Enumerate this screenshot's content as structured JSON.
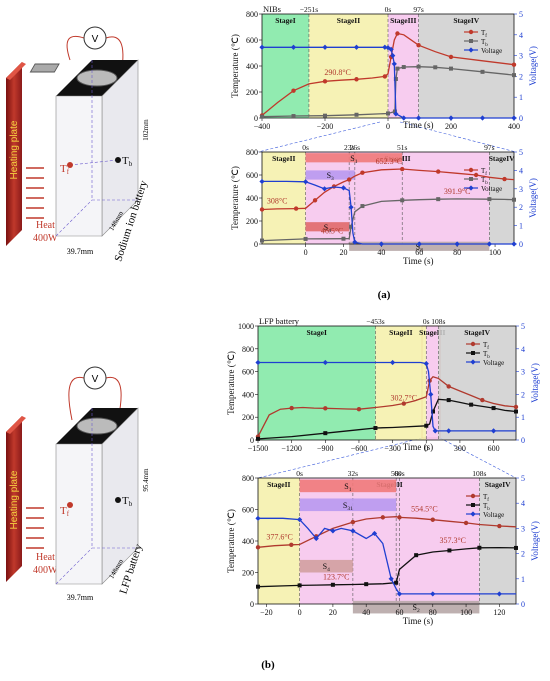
{
  "panel_labels": [
    "(a)",
    "(b)"
  ],
  "battery_a": {
    "plate_label": "Heating plate",
    "heat_label": "Heat",
    "power_label": "400W",
    "tf_label": "T",
    "tf_sub": "f",
    "tb_label": "T",
    "tb_sub": "b",
    "voltmeter": "V",
    "height_label": "102mm",
    "depth_label": "148mm",
    "width_label": "39.7mm",
    "battery_name": "Sodium ion battery"
  },
  "battery_b": {
    "plate_label": "Heating plate",
    "heat_label": "Heat",
    "power_label": "400W",
    "tf_label": "T",
    "tf_sub": "f",
    "tb_label": "T",
    "tb_sub": "b",
    "voltmeter": "V",
    "height_label": "95.4mm",
    "depth_label": "148mm",
    "width_label": "39.7mm",
    "battery_name": "LFP battery"
  },
  "chart_data": [
    {
      "id": "a_top",
      "type": "line",
      "corner_label": "NIBs",
      "xlabel": "Time (s)",
      "ylabel": "Temperature (℃)",
      "y2label": "Voltage(V)",
      "xlim": [
        -400,
        400
      ],
      "ylim": [
        0,
        800
      ],
      "y2lim": [
        0,
        5
      ],
      "xticks": [
        -400,
        -200,
        0,
        200,
        400
      ],
      "xtick_labels": [
        "−400",
        "−200",
        "0",
        "200",
        "400"
      ],
      "yticks": [
        0,
        200,
        400,
        600,
        800
      ],
      "y2ticks": [
        0,
        1,
        2,
        3,
        4,
        5
      ],
      "regions": [
        {
          "label": "StageI",
          "from": -400,
          "to": -251,
          "color": "#7ee8a2"
        },
        {
          "label": "StageII",
          "from": -251,
          "to": 0,
          "color": "#f4f0a8"
        },
        {
          "label": "StageIII",
          "from": 0,
          "to": 97,
          "color": "#f6c3ec"
        },
        {
          "label": "StageIV",
          "from": 97,
          "to": 400,
          "color": "#cfcfcf"
        }
      ],
      "marker_lines": [
        {
          "x": -251,
          "label": "−251s"
        },
        {
          "x": 0,
          "label": "0s"
        },
        {
          "x": 97,
          "label": "97s"
        }
      ],
      "annotations": [
        {
          "text": "290.8°C",
          "x": -160,
          "y": 291
        }
      ],
      "legend": {
        "position": "top-right"
      },
      "series": [
        {
          "name": "T",
          "sub": "f",
          "color": "#c0392b",
          "axis": "left",
          "marker": "circle",
          "x": [
            -400,
            -350,
            -300,
            -251,
            -200,
            -150,
            -100,
            -50,
            -10,
            0,
            10,
            20,
            30,
            50,
            97,
            150,
            200,
            300,
            400
          ],
          "y": [
            20,
            120,
            210,
            262,
            282,
            291,
            298,
            308,
            320,
            340,
            470,
            600,
            650,
            640,
            560,
            510,
            470,
            440,
            410
          ]
        },
        {
          "name": "T",
          "sub": "b",
          "color": "#666666",
          "axis": "left",
          "marker": "square",
          "x": [
            -400,
            -300,
            -200,
            -100,
            0,
            22,
            25,
            30,
            50,
            97,
            150,
            200,
            300,
            400
          ],
          "y": [
            10,
            15,
            18,
            25,
            35,
            50,
            300,
            380,
            392,
            395,
            390,
            380,
            355,
            330
          ]
        },
        {
          "name": "Voltage",
          "color": "#1f3fd1",
          "axis": "right",
          "marker": "diamond",
          "x": [
            -400,
            -300,
            -200,
            -100,
            -10,
            0,
            10,
            15,
            20,
            25,
            50,
            97,
            200,
            300,
            400
          ],
          "y": [
            3.4,
            3.4,
            3.4,
            3.4,
            3.4,
            3.38,
            3.3,
            3.0,
            2.6,
            0.2,
            0.0,
            0.0,
            0.0,
            0.0,
            0.0
          ]
        }
      ]
    },
    {
      "id": "a_bottom",
      "type": "line",
      "xlabel": "Time (s)",
      "ylabel": "Temperature (℃)",
      "y2label": "Voltage(V)",
      "xlim": [
        -23,
        110
      ],
      "ylim": [
        0,
        800
      ],
      "y2lim": [
        0,
        5
      ],
      "xticks": [
        0,
        20,
        40,
        60,
        80,
        100
      ],
      "xtick_labels": [
        "0",
        "20",
        "40",
        "60",
        "80",
        "100"
      ],
      "yticks": [
        0,
        200,
        400,
        600,
        800
      ],
      "y2ticks": [
        0,
        1,
        2,
        3,
        4,
        5
      ],
      "regions": [
        {
          "label": "StageII",
          "from": -23,
          "to": 0,
          "color": "#f4f0a8"
        },
        {
          "label": "StageIII",
          "from": 0,
          "to": 97,
          "color": "#f6c3ec"
        },
        {
          "label": "StageIV",
          "from": 97,
          "to": 110,
          "color": "#cfcfcf"
        }
      ],
      "marker_lines": [
        {
          "x": 0,
          "label": "0s"
        },
        {
          "x": 23,
          "label": "23s"
        },
        {
          "x": 26,
          "label": "26s"
        },
        {
          "x": 51,
          "label": "51s"
        },
        {
          "x": 97,
          "label": "97s"
        }
      ],
      "bands": [
        {
          "label": "S",
          "sub": "1",
          "from": 0,
          "to": 51,
          "ylo": 710,
          "yhi": 790,
          "color": "#f07a7a"
        },
        {
          "label": "S",
          "sub": "3",
          "from": 0,
          "to": 26,
          "ylo": 560,
          "yhi": 640,
          "color": "#b899f0"
        },
        {
          "label": "S",
          "sub": "4",
          "from": 0,
          "to": 23,
          "ylo": 110,
          "yhi": 190,
          "color": "#e06a6a"
        },
        {
          "label": "S",
          "sub": "2",
          "from": 23,
          "to": 97,
          "ylo": -60,
          "yhi": 20,
          "color": "#b7a7a7"
        }
      ],
      "annotations": [
        {
          "text": "308°C",
          "x": -15,
          "y": 308
        },
        {
          "text": "652.3°C",
          "x": 44,
          "y": 652
        },
        {
          "text": "46.5°C",
          "x": 14,
          "y": 46
        },
        {
          "text": "391.9°C",
          "x": 80,
          "y": 392
        }
      ],
      "legend": {
        "position": "top-right"
      },
      "series": [
        {
          "name": "T",
          "sub": "f",
          "color": "#c0392b",
          "axis": "left",
          "marker": "circle",
          "x": [
            -23,
            -15,
            -5,
            0,
            5,
            10,
            15,
            20,
            23,
            26,
            30,
            40,
            51,
            60,
            70,
            80,
            90,
            97,
            105,
            110
          ],
          "y": [
            300,
            305,
            308,
            310,
            380,
            450,
            500,
            540,
            560,
            590,
            620,
            645,
            652,
            640,
            630,
            615,
            600,
            580,
            565,
            560
          ]
        },
        {
          "name": "T",
          "sub": "b",
          "color": "#666666",
          "axis": "left",
          "marker": "square",
          "x": [
            -23,
            -10,
            0,
            10,
            20,
            23,
            24,
            26,
            30,
            40,
            51,
            60,
            70,
            80,
            97,
            105,
            110
          ],
          "y": [
            30,
            38,
            44,
            45,
            46,
            47,
            150,
            280,
            330,
            370,
            380,
            385,
            390,
            392,
            390,
            388,
            385
          ]
        },
        {
          "name": "Voltage",
          "color": "#1f3fd1",
          "axis": "right",
          "marker": "diamond",
          "x": [
            -23,
            -10,
            0,
            5,
            10,
            15,
            20,
            23,
            24,
            25,
            26,
            30,
            40,
            51,
            60,
            70,
            80,
            90,
            97,
            105,
            110
          ],
          "y": [
            3.4,
            3.4,
            3.38,
            3.2,
            3.0,
            3.1,
            3.05,
            2.9,
            2.0,
            0.6,
            0.1,
            0.0,
            0.0,
            0.0,
            0.0,
            0.0,
            0.0,
            0.0,
            0.0,
            0.0,
            0.0
          ]
        }
      ]
    },
    {
      "id": "b_top",
      "type": "line",
      "corner_label": "LFP battery",
      "xlabel": "Time (s)",
      "ylabel": "Temperature (℃)",
      "y2label": "Voltage(V)",
      "xlim": [
        -1500,
        800
      ],
      "ylim": [
        0,
        1000
      ],
      "y2lim": [
        0,
        5
      ],
      "xticks": [
        -1500,
        -1200,
        -900,
        -600,
        -300,
        0,
        300,
        600
      ],
      "xtick_labels": [
        "−1500",
        "−1200",
        "−900",
        "−600",
        "−300",
        "0",
        "300",
        "600"
      ],
      "yticks": [
        0,
        200,
        400,
        600,
        800,
        1000
      ],
      "y2ticks": [
        0,
        1,
        2,
        3,
        4,
        5
      ],
      "regions": [
        {
          "label": "StageI",
          "from": -1500,
          "to": -453,
          "color": "#7ee8a2"
        },
        {
          "label": "StageII",
          "from": -453,
          "to": 0,
          "color": "#f4f0a8"
        },
        {
          "label": "StageIII",
          "from": 0,
          "to": 108,
          "color": "#f6c3ec"
        },
        {
          "label": "StageIV",
          "from": 108,
          "to": 800,
          "color": "#cfcfcf"
        }
      ],
      "marker_lines": [
        {
          "x": -453,
          "label": "−453s"
        },
        {
          "x": 0,
          "label": "0s"
        },
        {
          "x": 108,
          "label": "108s"
        }
      ],
      "annotations": [
        {
          "text": "302.7°C",
          "x": -200,
          "y": 303
        }
      ],
      "legend": {
        "position": "top-right"
      },
      "series": [
        {
          "name": "T",
          "sub": "f",
          "color": "#b03a2e",
          "axis": "left",
          "marker": "circle",
          "x": [
            -1500,
            -1400,
            -1300,
            -1200,
            -1100,
            -1000,
            -900,
            -800,
            -700,
            -600,
            -453,
            -300,
            -200,
            -100,
            0,
            30,
            60,
            108,
            200,
            300,
            400,
            500,
            600,
            700,
            800
          ],
          "y": [
            30,
            220,
            270,
            280,
            285,
            280,
            278,
            275,
            272,
            270,
            285,
            303,
            320,
            345,
            380,
            520,
            555,
            540,
            470,
            430,
            390,
            350,
            320,
            300,
            290
          ]
        },
        {
          "name": "T",
          "sub": "b",
          "color": "#111111",
          "axis": "left",
          "marker": "square",
          "x": [
            -1500,
            -1200,
            -900,
            -600,
            -453,
            -300,
            0,
            30,
            60,
            108,
            200,
            300,
            400,
            500,
            600,
            700,
            800
          ],
          "y": [
            10,
            30,
            60,
            90,
            105,
            110,
            125,
            140,
            250,
            357,
            350,
            330,
            310,
            295,
            280,
            260,
            250
          ]
        },
        {
          "name": "Voltage",
          "color": "#1f3fd1",
          "axis": "right",
          "marker": "diamond",
          "x": [
            -1500,
            -1200,
            -900,
            -600,
            -300,
            -50,
            0,
            20,
            40,
            60,
            80,
            108,
            200,
            400,
            600,
            800
          ],
          "y": [
            3.4,
            3.4,
            3.4,
            3.4,
            3.4,
            3.4,
            3.35,
            3.0,
            2.0,
            0.6,
            0.4,
            0.4,
            0.4,
            0.4,
            0.4,
            0.4
          ]
        }
      ]
    },
    {
      "id": "b_bottom",
      "type": "line",
      "xlabel": "Time (s)",
      "ylabel": "Temperature (℃)",
      "y2label": "Voltage(V)",
      "xlim": [
        -25,
        130
      ],
      "ylim": [
        0,
        800
      ],
      "y2lim": [
        0,
        5
      ],
      "xticks": [
        -20,
        0,
        20,
        40,
        60,
        80,
        100,
        120
      ],
      "xtick_labels": [
        "−20",
        "0",
        "20",
        "40",
        "60",
        "80",
        "100",
        "120"
      ],
      "yticks": [
        0,
        200,
        400,
        600,
        800
      ],
      "y2ticks": [
        0,
        1,
        2,
        3,
        4,
        5
      ],
      "regions": [
        {
          "label": "StageII",
          "from": -25,
          "to": 0,
          "color": "#f4f0a8"
        },
        {
          "label": "StageIII",
          "from": 0,
          "to": 108,
          "color": "#f6c3ec"
        },
        {
          "label": "StageIV",
          "from": 108,
          "to": 130,
          "color": "#cfcfcf"
        }
      ],
      "marker_lines": [
        {
          "x": 0,
          "label": "0s"
        },
        {
          "x": 32,
          "label": "32s"
        },
        {
          "x": 58,
          "label": "58s"
        },
        {
          "x": 60,
          "label": "60s"
        },
        {
          "x": 108,
          "label": "108s"
        }
      ],
      "bands": [
        {
          "label": "S",
          "sub": "1",
          "from": 0,
          "to": 58,
          "ylo": 710,
          "yhi": 790,
          "color": "#f07a7a"
        },
        {
          "label": "S",
          "sub": "31",
          "from": 0,
          "to": 58,
          "ylo": 590,
          "yhi": 670,
          "color": "#b899f0"
        },
        {
          "label": "S",
          "sub": "4",
          "from": 0,
          "to": 32,
          "ylo": 200,
          "yhi": 280,
          "color": "#d2a0a0"
        },
        {
          "label": "S",
          "sub": "2",
          "from": 32,
          "to": 108,
          "ylo": -60,
          "yhi": 20,
          "color": "#b7a7a7"
        }
      ],
      "annotations": [
        {
          "text": "377.6°C",
          "x": -12,
          "y": 378
        },
        {
          "text": "554.5°C",
          "x": 75,
          "y": 555
        },
        {
          "text": "123.7°C",
          "x": 22,
          "y": 124
        },
        {
          "text": "357.3°C",
          "x": 92,
          "y": 357
        }
      ],
      "legend": {
        "position": "top-right"
      },
      "series": [
        {
          "name": "T",
          "sub": "f",
          "color": "#b03a2e",
          "axis": "left",
          "marker": "circle",
          "x": [
            -25,
            -15,
            -5,
            0,
            10,
            20,
            32,
            40,
            50,
            58,
            60,
            70,
            80,
            90,
            100,
            108,
            120,
            130
          ],
          "y": [
            360,
            370,
            376,
            378,
            430,
            480,
            520,
            540,
            550,
            554,
            550,
            545,
            535,
            525,
            515,
            505,
            495,
            490
          ]
        },
        {
          "name": "T",
          "sub": "b",
          "color": "#111111",
          "axis": "left",
          "marker": "square",
          "x": [
            -25,
            -10,
            0,
            10,
            20,
            32,
            40,
            50,
            58,
            60,
            70,
            80,
            90,
            100,
            108,
            120,
            130
          ],
          "y": [
            110,
            115,
            118,
            120,
            122,
            124,
            126,
            128,
            135,
            220,
            310,
            330,
            340,
            350,
            357,
            358,
            356
          ]
        },
        {
          "name": "Voltage",
          "color": "#1f3fd1",
          "axis": "right",
          "marker": "diamond",
          "x": [
            -25,
            -10,
            0,
            5,
            10,
            15,
            20,
            25,
            32,
            40,
            45,
            50,
            55,
            58,
            60,
            70,
            80,
            100,
            120,
            130
          ],
          "y": [
            3.4,
            3.4,
            3.35,
            3.0,
            2.6,
            3.0,
            2.9,
            3.0,
            2.9,
            2.6,
            2.8,
            2.4,
            1.0,
            0.6,
            0.4,
            0.4,
            0.4,
            0.4,
            0.4,
            0.4
          ]
        }
      ]
    }
  ]
}
